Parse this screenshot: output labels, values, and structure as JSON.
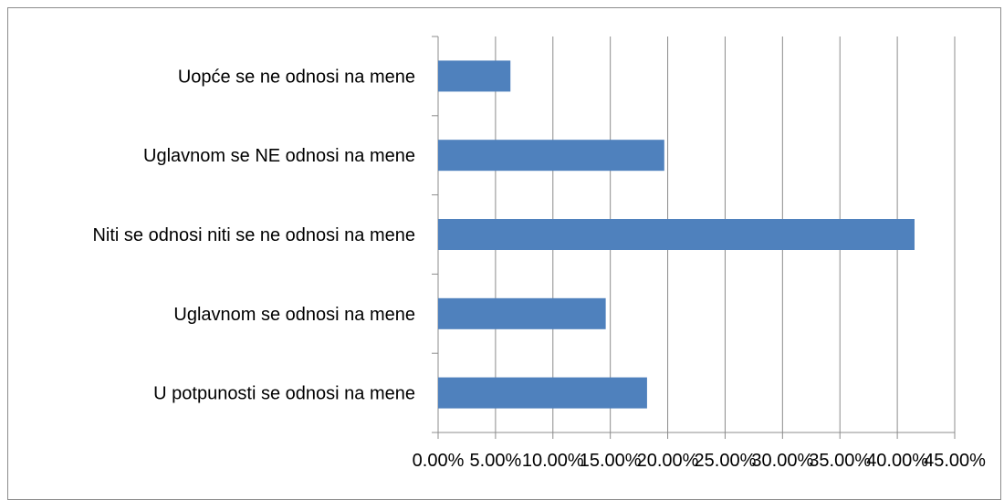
{
  "chart_data": {
    "type": "bar",
    "orientation": "horizontal",
    "categories": [
      "U potpunosti se odnosi na mene",
      "Uglavnom se  odnosi na mene",
      "Niti se odnosi niti se ne odnosi na mene",
      "Uglavnom se  NE odnosi na mene",
      "Uopće se ne odnosi na mene"
    ],
    "values": [
      18.2,
      14.6,
      41.5,
      19.7,
      6.3
    ],
    "xlim": [
      0,
      45
    ],
    "x_ticks": [
      0,
      5,
      10,
      15,
      20,
      25,
      30,
      35,
      40,
      45
    ],
    "x_tick_labels": [
      "0.00%",
      "5.00%",
      "10.00%",
      "15.00%",
      "20.00%",
      "25.00%",
      "30.00%",
      "35.00%",
      "40.00%",
      "45.00%"
    ],
    "grid": "vertical",
    "legend": "none",
    "colors": {
      "bar": "#4f81bd",
      "gridline": "#8c8c8c",
      "axis": "#8c8c8c"
    }
  }
}
